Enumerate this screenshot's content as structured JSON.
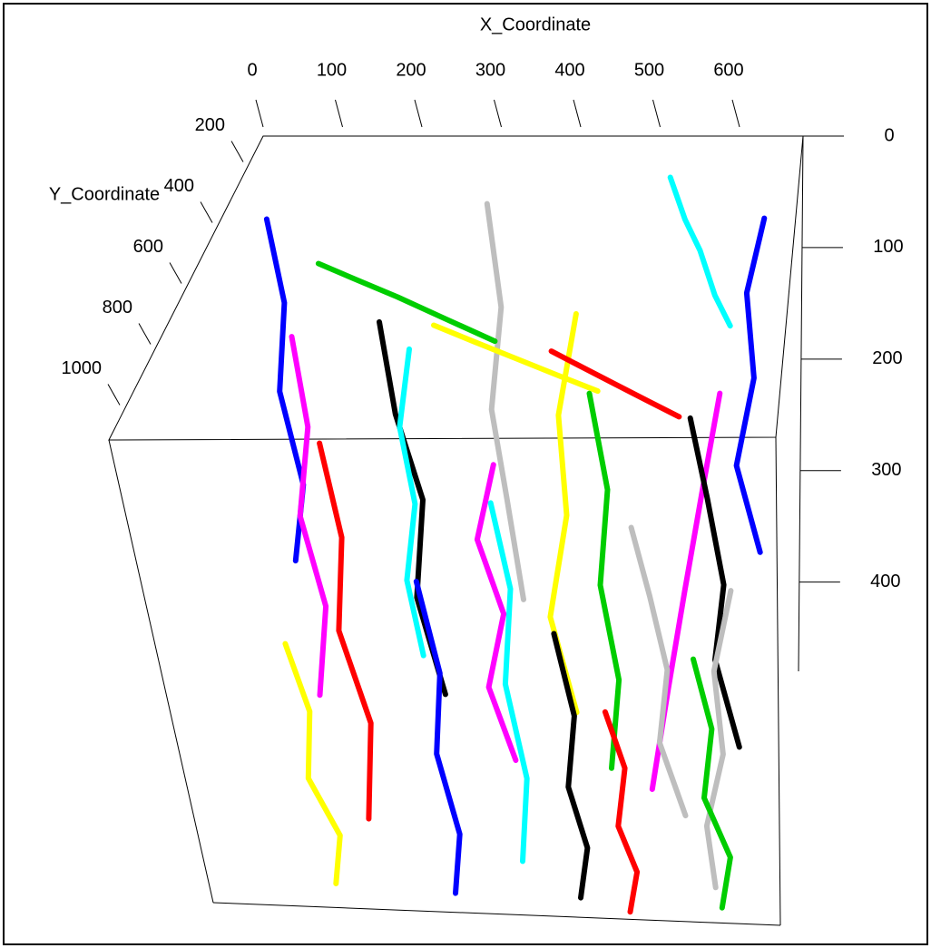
{
  "chart_data": {
    "type": "scatter3d",
    "xlabel": "X_Coordinate",
    "ylabel": "Y_Coordinate",
    "xlim": [
      0,
      680
    ],
    "ylim": [
      100,
      1100
    ],
    "zlim": [
      0,
      480
    ],
    "xticks": [
      0,
      100,
      200,
      300,
      400,
      500,
      600
    ],
    "yticks": [
      200,
      400,
      600,
      800,
      1000
    ],
    "zticks": [
      0,
      100,
      200,
      300,
      400
    ],
    "series": [
      {
        "color": "#0000ff",
        "x": [
          40,
          60,
          55,
          80,
          70
        ],
        "y": [
          300,
          320,
          360,
          380,
          420
        ],
        "z": [
          20,
          90,
          160,
          240,
          300
        ]
      },
      {
        "color": "#00ffff",
        "x": [
          520,
          540,
          560,
          580,
          600
        ],
        "y": [
          200,
          230,
          260,
          300,
          330
        ],
        "z": [
          10,
          40,
          60,
          90,
          110
        ]
      },
      {
        "color": "#bebebe",
        "x": [
          300,
          320,
          310,
          330,
          350
        ],
        "y": [
          250,
          300,
          350,
          400,
          450
        ],
        "z": [
          20,
          100,
          180,
          250,
          330
        ]
      },
      {
        "color": "#000000",
        "x": [
          200,
          220,
          250,
          240,
          270
        ],
        "y": [
          500,
          560,
          600,
          650,
          700
        ],
        "z": [
          60,
          130,
          200,
          280,
          360
        ]
      },
      {
        "color": "#ffff00",
        "x": [
          420,
          400,
          410,
          390,
          420
        ],
        "y": [
          400,
          450,
          500,
          560,
          600
        ],
        "z": [
          80,
          160,
          240,
          320,
          400
        ]
      },
      {
        "color": "#00cd00",
        "x": [
          100,
          150,
          200,
          260,
          320
        ],
        "y": [
          300,
          320,
          340,
          360,
          380
        ],
        "z": [
          60,
          70,
          80,
          95,
          110
        ]
      },
      {
        "color": "#ff00ff",
        "x": [
          600,
          580,
          560,
          540,
          520
        ],
        "y": [
          600,
          650,
          700,
          760,
          820
        ],
        "z": [
          100,
          180,
          260,
          340,
          420
        ]
      },
      {
        "color": "#ff0000",
        "x": [
          150,
          170,
          160,
          190,
          180
        ],
        "y": [
          700,
          740,
          780,
          820,
          880
        ],
        "z": [
          120,
          200,
          280,
          360,
          440
        ]
      },
      {
        "color": "#0000ff",
        "x": [
          640,
          620,
          630,
          610,
          640
        ],
        "y": [
          300,
          330,
          360,
          400,
          440
        ],
        "z": [
          20,
          80,
          150,
          220,
          290
        ]
      },
      {
        "color": "#00ffff",
        "x": [
          350,
          370,
          360,
          380,
          370
        ],
        "y": [
          800,
          850,
          900,
          950,
          1000
        ],
        "z": [
          150,
          220,
          300,
          380,
          450
        ]
      },
      {
        "color": "#bebebe",
        "x": [
          500,
          520,
          540,
          530,
          560
        ],
        "y": [
          700,
          720,
          760,
          800,
          840
        ],
        "z": [
          200,
          260,
          320,
          380,
          440
        ]
      },
      {
        "color": "#000000",
        "x": [
          560,
          580,
          600,
          590,
          620
        ],
        "y": [
          500,
          520,
          560,
          600,
          650
        ],
        "z": [
          150,
          220,
          290,
          350,
          420
        ]
      },
      {
        "color": "#ffff00",
        "x": [
          250,
          300,
          350,
          400,
          450
        ],
        "y": [
          400,
          420,
          440,
          460,
          480
        ],
        "z": [
          90,
          100,
          110,
          120,
          130
        ]
      },
      {
        "color": "#00cd00",
        "x": [
          450,
          470,
          460,
          480,
          470
        ],
        "y": [
          600,
          640,
          680,
          720,
          780
        ],
        "z": [
          100,
          180,
          260,
          340,
          410
        ]
      },
      {
        "color": "#ff00ff",
        "x": [
          80,
          100,
          90,
          120,
          110
        ],
        "y": [
          400,
          450,
          500,
          560,
          620
        ],
        "z": [
          100,
          170,
          240,
          310,
          380
        ]
      },
      {
        "color": "#ff0000",
        "x": [
          380,
          420,
          460,
          500,
          540
        ],
        "y": [
          300,
          320,
          340,
          360,
          380
        ],
        "z": [
          140,
          150,
          160,
          170,
          180
        ]
      },
      {
        "color": "#0000ff",
        "x": [
          270,
          290,
          280,
          300,
          290
        ],
        "y": [
          900,
          940,
          980,
          1020,
          1060
        ],
        "z": [
          200,
          280,
          350,
          420,
          470
        ]
      },
      {
        "color": "#00ffff",
        "x": [
          200,
          190,
          210,
          200,
          220
        ],
        "y": [
          250,
          290,
          330,
          370,
          410
        ],
        "z": [
          150,
          210,
          270,
          330,
          390
        ]
      },
      {
        "color": "#bebebe",
        "x": [
          620,
          600,
          610,
          590,
          600
        ],
        "y": [
          850,
          880,
          920,
          960,
          1000
        ],
        "z": [
          220,
          290,
          360,
          420,
          470
        ]
      },
      {
        "color": "#000000",
        "x": [
          420,
          440,
          430,
          450,
          440
        ],
        "y": [
          900,
          940,
          980,
          1020,
          1060
        ],
        "z": [
          250,
          320,
          380,
          430,
          470
        ]
      },
      {
        "color": "#ffff00",
        "x": [
          120,
          140,
          130,
          160,
          150
        ],
        "y": [
          950,
          980,
          1010,
          1040,
          1080
        ],
        "z": [
          250,
          310,
          370,
          420,
          460
        ]
      },
      {
        "color": "#00cd00",
        "x": [
          580,
          600,
          590,
          620,
          610
        ],
        "y": [
          950,
          980,
          1010,
          1040,
          1080
        ],
        "z": [
          260,
          320,
          380,
          430,
          470
        ]
      },
      {
        "color": "#ff00ff",
        "x": [
          330,
          310,
          340,
          320,
          350
        ],
        "y": [
          550,
          590,
          630,
          670,
          710
        ],
        "z": [
          180,
          240,
          300,
          360,
          420
        ]
      },
      {
        "color": "#ff0000",
        "x": [
          480,
          500,
          490,
          510,
          500
        ],
        "y": [
          1000,
          1020,
          1050,
          1070,
          1090
        ],
        "z": [
          300,
          350,
          400,
          440,
          475
        ]
      }
    ]
  }
}
